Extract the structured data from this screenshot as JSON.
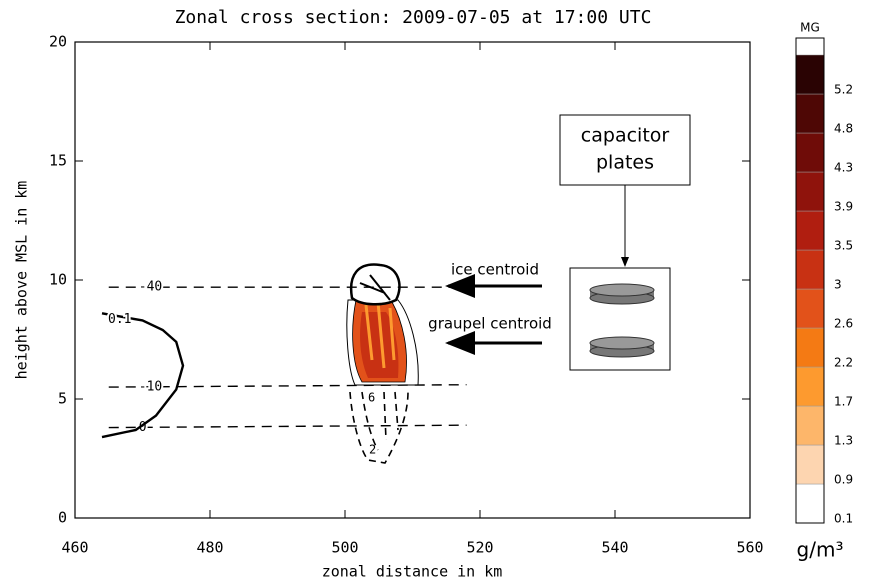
{
  "chart_data": {
    "type": "line",
    "title": "Zonal cross section: 2009-07-05 at 17:00 UTC",
    "xlabel": "zonal distance in km",
    "ylabel": "height above MSL in km",
    "xlim": [
      460,
      560
    ],
    "xticks": [
      460,
      480,
      500,
      520,
      540,
      560
    ],
    "ylim": [
      0,
      20
    ],
    "yticks": [
      0,
      5,
      10,
      15,
      20
    ],
    "series": [
      {
        "name": "-40",
        "style": "dashed",
        "color": "#000000",
        "x": [
          465,
          518
        ],
        "y": [
          9.7,
          9.7
        ]
      },
      {
        "name": "-10",
        "style": "dashed",
        "color": "#000000",
        "x": [
          465,
          518
        ],
        "y": [
          5.5,
          5.6
        ]
      },
      {
        "name": "0",
        "style": "dashed",
        "color": "#000000",
        "x": [
          465,
          518
        ],
        "y": [
          3.8,
          3.9
        ]
      },
      {
        "name": "0.1",
        "style": "solid",
        "color": "#000000",
        "x": [
          464,
          469,
          472,
          475,
          476,
          475,
          473,
          470,
          464
        ],
        "y": [
          3.4,
          3.7,
          4.3,
          5.4,
          6.4,
          7.4,
          7.9,
          8.3,
          8.6
        ]
      }
    ],
    "blob_labels": [
      "6",
      "2"
    ],
    "colorbar": {
      "label": "MG",
      "unit": "g/m³",
      "levels": [
        0.1,
        0.9,
        1.3,
        1.7,
        2.2,
        2.6,
        3.0,
        3.5,
        3.9,
        4.3,
        4.8,
        5.2
      ],
      "colors": [
        "#ffffff",
        "#fdd5b0",
        "#fdb66a",
        "#fd9a2f",
        "#f47a14",
        "#e2521a",
        "#c83113",
        "#b01e10",
        "#8f130c",
        "#6f0c08",
        "#4e0705",
        "#2a0303"
      ]
    },
    "annotations": {
      "capacitor": [
        "capacitor",
        "plates"
      ],
      "ice": "ice centroid",
      "graupel": "graupel centroid"
    }
  }
}
